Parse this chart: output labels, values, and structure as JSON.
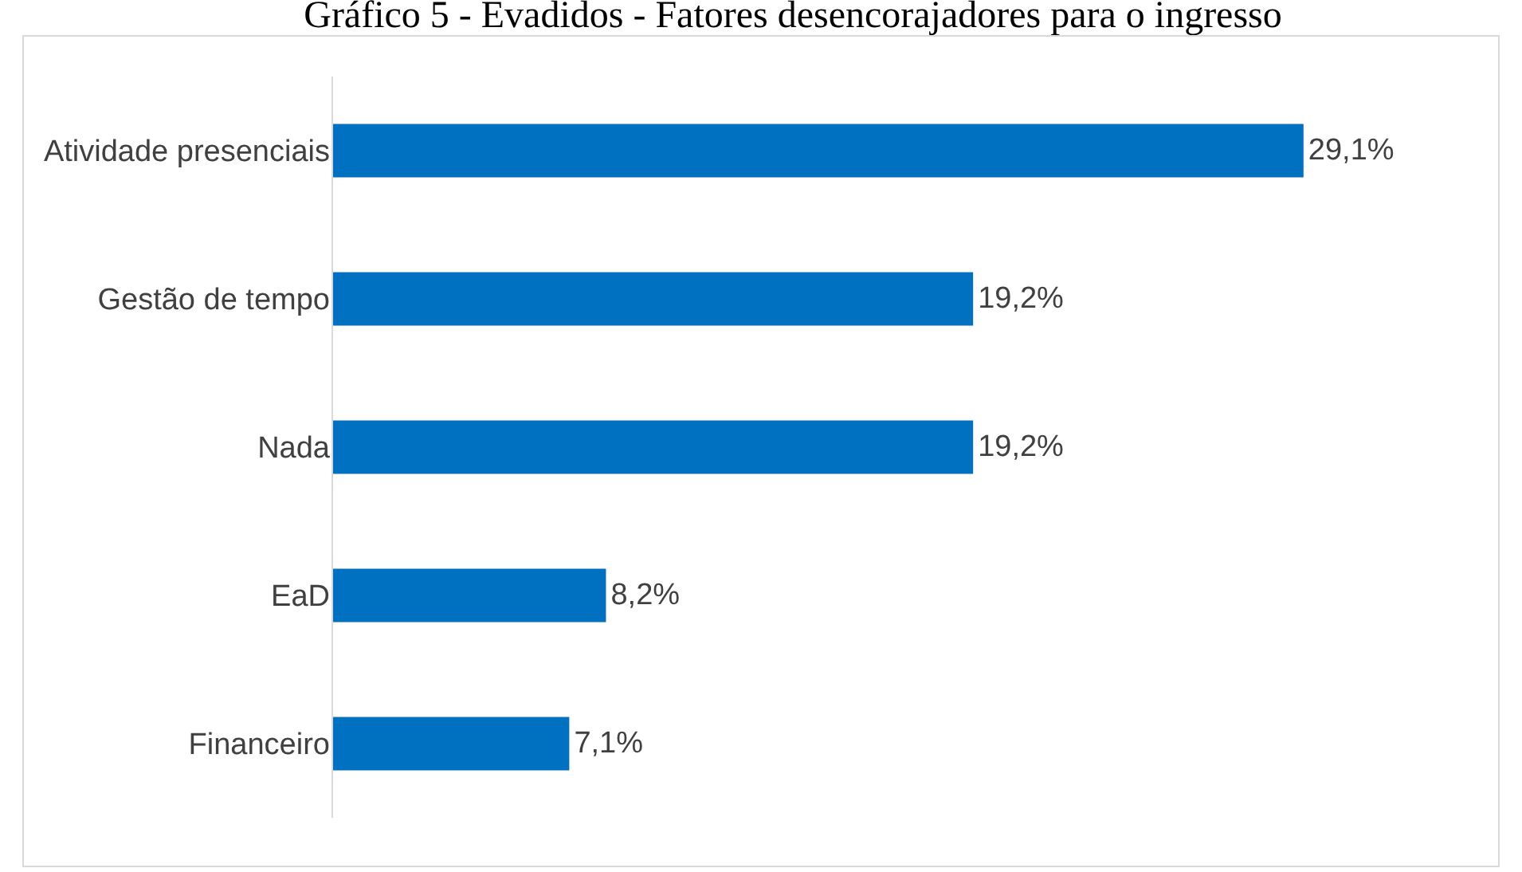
{
  "chart_data": {
    "type": "bar",
    "orientation": "horizontal",
    "title": "Gráfico 5 - Evadidos - Fatores desencorajadores para o ingresso",
    "categories": [
      "Atividade presenciais",
      "Gestão de tempo",
      "Nada",
      "EaD",
      "Financeiro"
    ],
    "values": [
      29.1,
      19.2,
      19.2,
      8.2,
      7.1
    ],
    "value_labels": [
      "29,1%",
      "19,2%",
      "19,2%",
      "8,2%",
      "7,1%"
    ],
    "color": "#0070c0",
    "grid": false,
    "legend": false
  }
}
